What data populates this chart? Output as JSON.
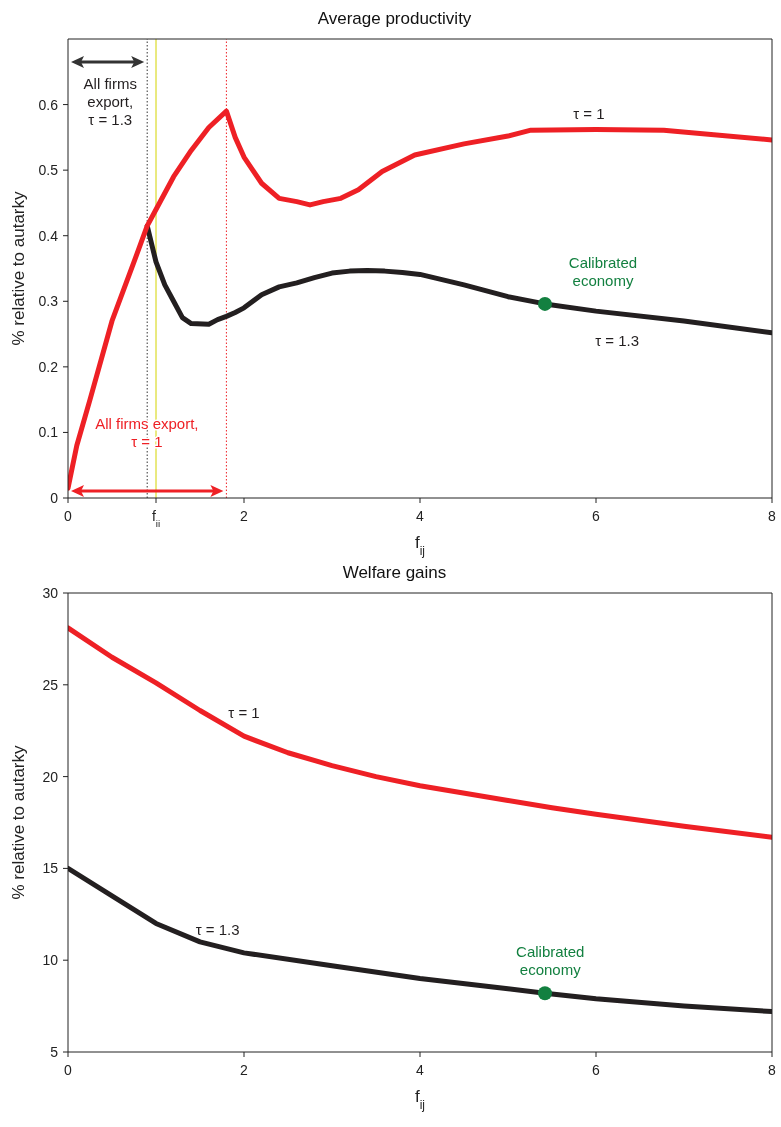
{
  "chart_data": [
    {
      "type": "line",
      "title": "Average productivity",
      "xlabel": "f$_{ij}$",
      "ylabel": "% relative to autarky",
      "xlim": [
        0,
        8
      ],
      "xticks": [
        0,
        {
          "value": 1,
          "label": "f$_{ii}$"
        },
        2,
        4,
        6,
        8
      ],
      "ylim": [
        0,
        0.7
      ],
      "yticks": [
        0,
        0.1,
        0.2,
        0.3,
        0.4,
        0.5,
        0.6
      ],
      "series": [
        {
          "color": "#231f20",
          "line_style": "solid",
          "x": [
            0.9,
            1.0,
            1.1,
            1.2,
            1.3,
            1.4,
            1.6,
            1.7,
            1.8,
            1.9,
            2.0,
            2.2,
            2.4,
            2.6,
            2.8,
            3.0,
            3.2,
            3.4,
            3.6,
            3.8,
            4.0,
            4.5,
            5.0,
            5.42,
            6,
            7,
            8
          ],
          "values": [
            0.415,
            0.36,
            0.325,
            0.3,
            0.275,
            0.266,
            0.265,
            0.272,
            0.277,
            0.283,
            0.29,
            0.31,
            0.322,
            0.328,
            0.336,
            0.343,
            0.346,
            0.347,
            0.346,
            0.344,
            0.341,
            0.325,
            0.307,
            0.296,
            0.285,
            0.27,
            0.252
          ]
        },
        {
          "color": "#ee2025",
          "line_style": "solid",
          "x": [
            0,
            0.1,
            0.25,
            0.5,
            0.75,
            0.9,
            1.0,
            1.2,
            1.4,
            1.6,
            1.8,
            1.9,
            2.0,
            2.2,
            2.4,
            2.6,
            2.75,
            2.9,
            3.1,
            3.3,
            3.57,
            3.94,
            4.5,
            5.0,
            5.26,
            6,
            6.77,
            8
          ],
          "values": [
            0.015,
            0.08,
            0.15,
            0.27,
            0.36,
            0.415,
            0.44,
            0.49,
            0.53,
            0.565,
            0.59,
            0.55,
            0.52,
            0.48,
            0.457,
            0.452,
            0.447,
            0.452,
            0.457,
            0.47,
            0.498,
            0.523,
            0.54,
            0.552,
            0.561,
            0.562,
            0.561,
            0.546
          ]
        },
        {
          "type": "scatter",
          "color": "#138040",
          "marker": "circle",
          "x": [
            5.42
          ],
          "values": [
            0.296
          ]
        }
      ],
      "ref_lines": [
        {
          "axis": "x",
          "value": 0.9,
          "color": "#333333",
          "line_style": "dotted"
        },
        {
          "axis": "x",
          "value": 1.0,
          "color": "#d4d400",
          "line_style": "solid"
        },
        {
          "axis": "x",
          "value": 1.8,
          "color": "#ee2025",
          "line_style": "dotted"
        }
      ],
      "annotations": [
        "All firms export, τ = 1.3",
        "All firms export, τ = 1",
        "τ = 1",
        "τ = 1.3",
        "Calibrated economy"
      ]
    },
    {
      "type": "line",
      "title": "Welfare gains",
      "xlabel": "f$_{ij}$",
      "ylabel": "% relative to autarky",
      "xlim": [
        0,
        8
      ],
      "xticks": [
        0,
        2,
        4,
        6,
        8
      ],
      "ylim": [
        5,
        30
      ],
      "yticks": [
        5,
        10,
        15,
        20,
        25,
        30
      ],
      "series": [
        {
          "color": "#231f20",
          "line_style": "solid",
          "x": [
            0,
            0.5,
            1,
            1.5,
            2,
            3,
            4,
            5,
            5.42,
            6,
            7,
            8
          ],
          "values": [
            15.0,
            13.5,
            12.0,
            11.0,
            10.4,
            9.7,
            9.0,
            8.45,
            8.2,
            7.9,
            7.5,
            7.2
          ]
        },
        {
          "color": "#ee2025",
          "line_style": "solid",
          "x": [
            0,
            0.5,
            1,
            1.5,
            2,
            2.5,
            3,
            3.5,
            4,
            5,
            5.5,
            6,
            7,
            8
          ],
          "values": [
            28.1,
            26.5,
            25.1,
            23.6,
            22.2,
            21.3,
            20.6,
            20.0,
            19.5,
            18.7,
            18.3,
            17.95,
            17.3,
            16.7
          ]
        },
        {
          "type": "scatter",
          "color": "#138040",
          "marker": "circle",
          "x": [
            5.42
          ],
          "values": [
            8.2
          ]
        }
      ],
      "annotations": [
        "τ = 1",
        "τ = 1.3",
        "Calibrated economy"
      ]
    }
  ]
}
